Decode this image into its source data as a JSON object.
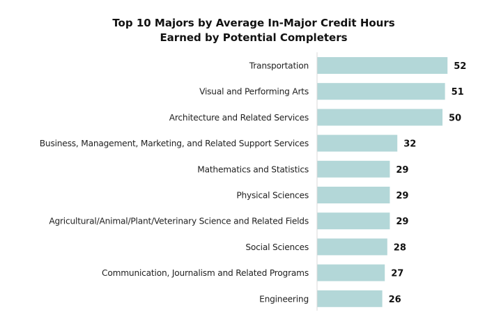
{
  "chart_data": {
    "type": "bar",
    "orientation": "horizontal",
    "title": [
      "Top 10 Majors by Average In-Major Credit Hours",
      "Earned by Potential Completers"
    ],
    "xlabel": "",
    "ylabel": "",
    "categories": [
      "Transportation",
      "Visual and Performing Arts",
      "Architecture and Related Services",
      "Business, Management, Marketing, and Related Support Services",
      "Mathematics and Statistics",
      "Physical Sciences",
      "Agricultural/Animal/Plant/Veterinary Science and Related Fields",
      "Social Sciences",
      "Communication, Journalism and Related Programs",
      "Engineering"
    ],
    "values": [
      52,
      51,
      50,
      32,
      29,
      29,
      29,
      28,
      27,
      26
    ],
    "xlim": [
      0,
      60
    ],
    "grid": false,
    "legend": "none",
    "data_labels": true,
    "bar_color": "#b3d7d8",
    "axis_color": "#d9d9d9"
  }
}
